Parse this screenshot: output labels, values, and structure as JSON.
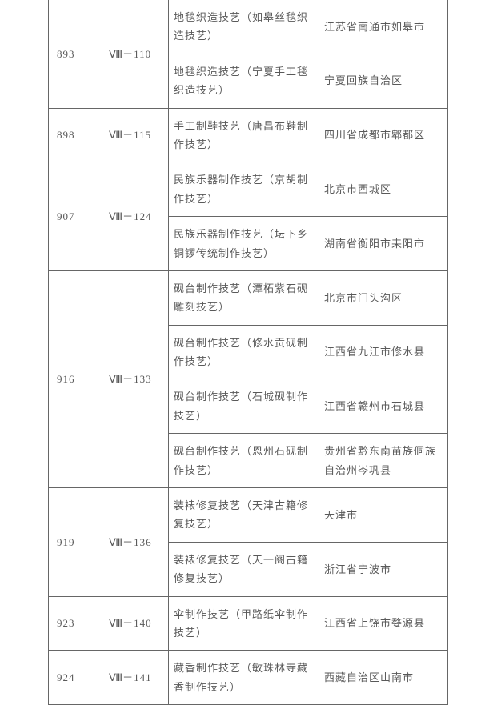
{
  "rows": [
    {
      "num": "893",
      "code_roman": "Ⅷ",
      "code_suffix": "－110",
      "subs": [
        {
          "name": "地毯织造技艺（如皋丝毯织造技艺）",
          "region": "江苏省南通市如皋市"
        },
        {
          "name": "地毯织造技艺（宁夏手工毯织造技艺）",
          "region": "宁夏回族自治区"
        }
      ]
    },
    {
      "num": "898",
      "code_roman": "Ⅷ",
      "code_suffix": "－115",
      "subs": [
        {
          "name": "手工制鞋技艺（唐昌布鞋制作技艺）",
          "region": "四川省成都市郫都区"
        }
      ]
    },
    {
      "num": "907",
      "code_roman": "Ⅷ",
      "code_suffix": "－124",
      "subs": [
        {
          "name": "民族乐器制作技艺（京胡制作技艺）",
          "region": "北京市西城区"
        },
        {
          "name": "民族乐器制作技艺（坛下乡铜锣传统制作技艺）",
          "region": "湖南省衡阳市耒阳市"
        }
      ]
    },
    {
      "num": "916",
      "code_roman": "Ⅷ",
      "code_suffix": "－133",
      "subs": [
        {
          "name": "砚台制作技艺（潭柘紫石砚雕刻技艺）",
          "region": "北京市门头沟区"
        },
        {
          "name": "砚台制作技艺（修水贡砚制作技艺）",
          "region": "江西省九江市修水县"
        },
        {
          "name": "砚台制作技艺（石城砚制作技艺）",
          "region": "江西省赣州市石城县"
        },
        {
          "name": "砚台制作技艺（恩州石砚制作技艺）",
          "region": "贵州省黔东南苗族侗族自治州岑巩县"
        }
      ]
    },
    {
      "num": "919",
      "code_roman": "Ⅷ",
      "code_suffix": "－136",
      "subs": [
        {
          "name": "装裱修复技艺（天津古籍修复技艺）",
          "region": "天津市"
        },
        {
          "name": "装裱修复技艺（天一阁古籍修复技艺）",
          "region": "浙江省宁波市"
        }
      ]
    },
    {
      "num": "923",
      "code_roman": "Ⅷ",
      "code_suffix": "－140",
      "subs": [
        {
          "name": "伞制作技艺（甲路纸伞制作技艺）",
          "region": "江西省上饶市婺源县"
        }
      ]
    },
    {
      "num": "924",
      "code_roman": "Ⅷ",
      "code_suffix": "－141",
      "subs": [
        {
          "name": "藏香制作技艺（敏珠林寺藏香制作技艺）",
          "region": "西藏自治区山南市"
        }
      ]
    }
  ]
}
